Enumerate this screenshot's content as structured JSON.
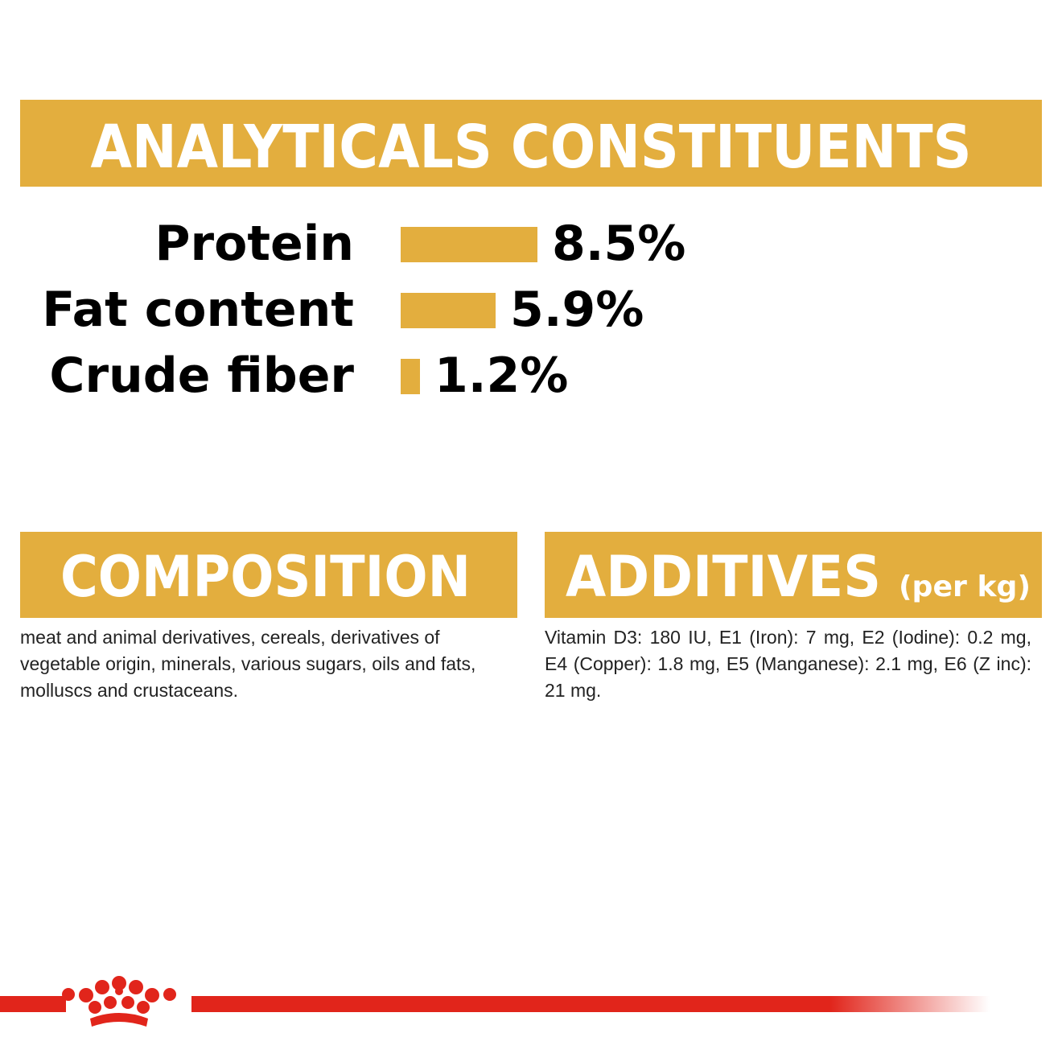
{
  "chart_data": {
    "type": "bar",
    "title": "ANALYTICALS CONSTITUENTS",
    "categories": [
      "Protein",
      "Fat content",
      "Crude fiber"
    ],
    "values": [
      8.5,
      5.9,
      1.2
    ],
    "value_labels": [
      "8.5%",
      "5.9%",
      "1.2%"
    ],
    "color": "#e3ae3e"
  },
  "composition": {
    "title": "COMPOSITION",
    "text": "meat and animal derivatives, cereals, derivatives of vegetable origin, minerals, various sugars, oils and fats, molluscs and crustaceans."
  },
  "additives": {
    "title": "ADDITIVES",
    "unit": "(per kg)",
    "text": "Vitamin D3: 180 IU, E1 (Iron): 7 mg, E2 (Iodine): 0.2 mg, E4 (Copper): 1.8 mg, E5 (Manganese): 2.1 mg, E6 (Z inc): 21 mg."
  }
}
